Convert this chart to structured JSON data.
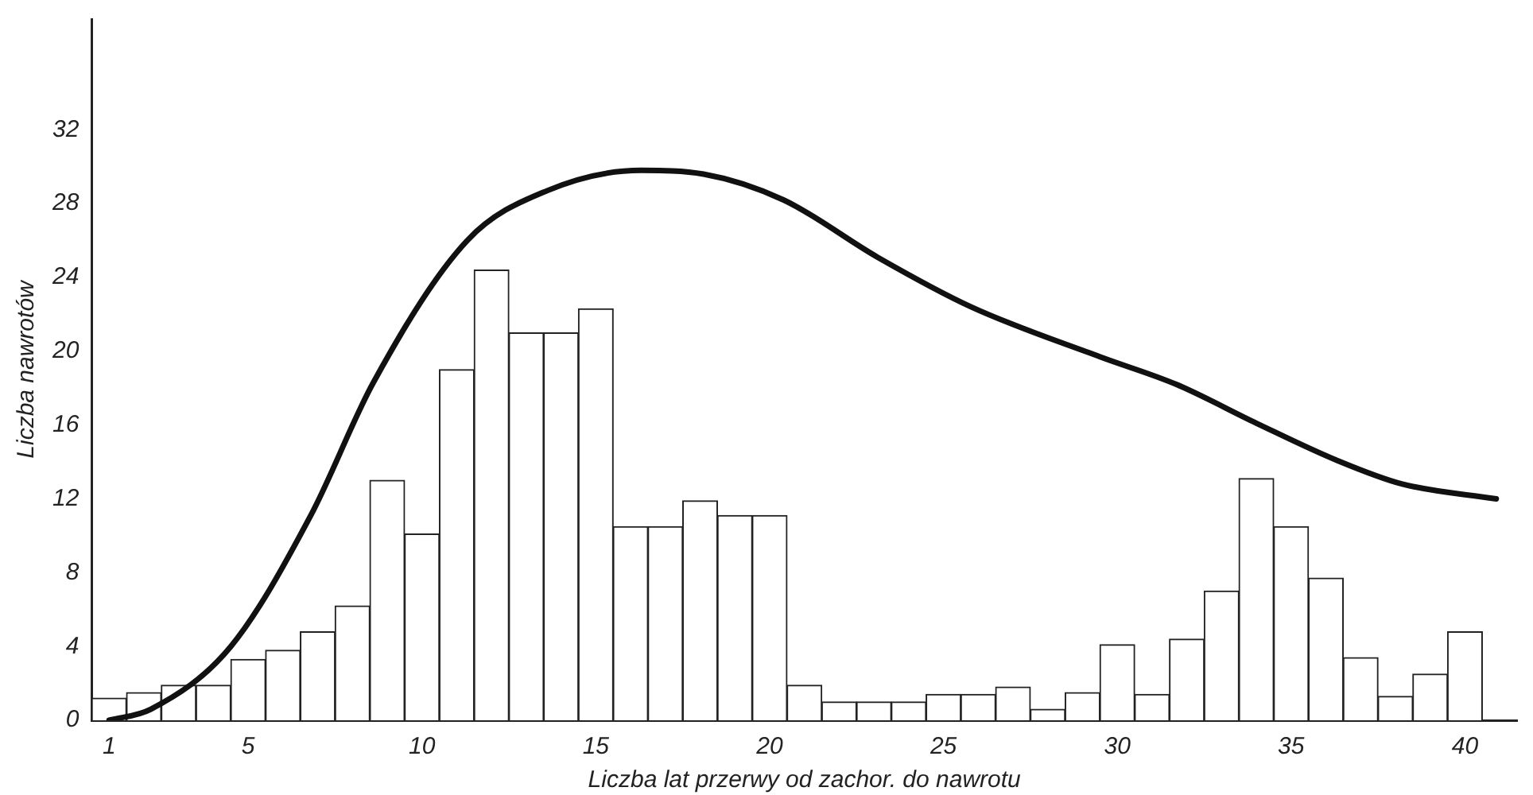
{
  "chart_data": {
    "type": "histogram",
    "xlabel": "Liczba lat przerwy od zachor. do nawrotu",
    "ylabel": "Liczba nawrotów",
    "bins": [
      0.5,
      1.5,
      2.5,
      3.5,
      4.5,
      5.5,
      6.5,
      7.5,
      8.5,
      9.5,
      10.5,
      11.5,
      12.5,
      13.5,
      14.5,
      15.5,
      16.5,
      17.5,
      18.5,
      19.5,
      20.5,
      21.5,
      22.5,
      23.5,
      24.5,
      25.5,
      26.5,
      27.5,
      28.5,
      29.5,
      30.5,
      31.5,
      32.5,
      33.5,
      34.5,
      35.5,
      36.5,
      37.5,
      38.5,
      39.5,
      40.5
    ],
    "values": [
      1.2,
      1.5,
      1.9,
      1.9,
      3.3,
      3.8,
      4.8,
      6.2,
      13,
      10.1,
      19,
      24.4,
      21,
      21,
      22.3,
      10.5,
      10.5,
      11.9,
      11.1,
      11.1,
      1.9,
      1,
      1,
      1,
      1.4,
      1.4,
      1.8,
      0.6,
      1.5,
      4.1,
      1.4,
      4.4,
      7,
      13.1,
      10.5,
      7.7,
      3.4,
      1.3,
      2.5,
      4.8
    ],
    "color": "#ffffff",
    "series": [
      {
        "type": "line",
        "color": "#111111",
        "x": [
          1,
          2.2,
          4.5,
          6.8,
          8.6,
          11.3,
          13.6,
          16.3,
          18.1,
          20.4,
          23.1,
          25.8,
          29.5,
          31.7,
          34,
          36.3,
          38.2,
          40.9
        ],
        "values": [
          0,
          0.6,
          4,
          11.1,
          18.3,
          26,
          28.7,
          29.8,
          29.6,
          28.2,
          25.1,
          22.4,
          19.7,
          18.2,
          16.1,
          14.1,
          12.8,
          12
        ]
      }
    ],
    "xlim": [
      0.5,
      41.5
    ],
    "xticks": [
      1,
      5,
      10,
      15,
      20,
      25,
      30,
      35,
      40
    ],
    "ylim": [
      0,
      38
    ],
    "yticks": [
      0,
      4,
      8,
      12,
      16,
      20,
      24,
      28,
      32
    ],
    "grid": false,
    "legend": false,
    "marker": "none",
    "line_style": "solid"
  }
}
